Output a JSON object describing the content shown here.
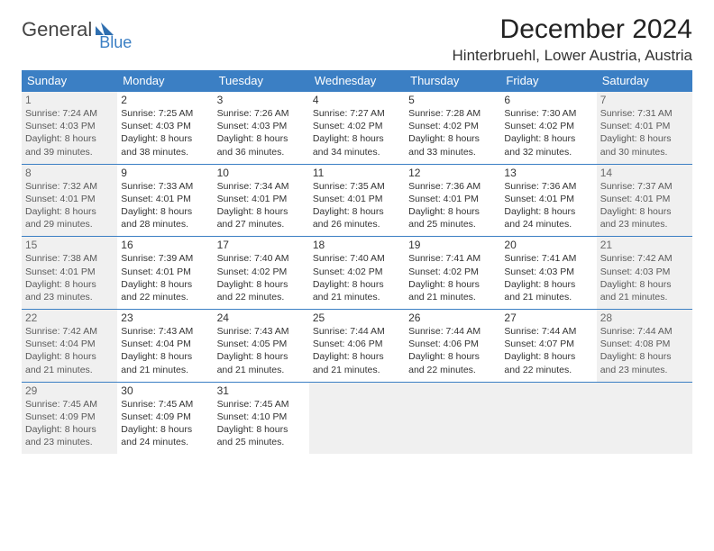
{
  "logo": {
    "text1": "General",
    "text2": "Blue"
  },
  "title": "December 2024",
  "location": "Hinterbruehl, Lower Austria, Austria",
  "colors": {
    "header_bg": "#3b7fc4",
    "header_fg": "#ffffff",
    "rule": "#3b7fc4",
    "shaded_bg": "#f0f0f0",
    "page_bg": "#ffffff",
    "text": "#333333"
  },
  "day_names": [
    "Sunday",
    "Monday",
    "Tuesday",
    "Wednesday",
    "Thursday",
    "Friday",
    "Saturday"
  ],
  "weeks": [
    [
      {
        "n": "1",
        "shaded": true,
        "sr": "7:24 AM",
        "ss": "4:03 PM",
        "dl": "8 hours and 39 minutes."
      },
      {
        "n": "2",
        "sr": "7:25 AM",
        "ss": "4:03 PM",
        "dl": "8 hours and 38 minutes."
      },
      {
        "n": "3",
        "sr": "7:26 AM",
        "ss": "4:03 PM",
        "dl": "8 hours and 36 minutes."
      },
      {
        "n": "4",
        "sr": "7:27 AM",
        "ss": "4:02 PM",
        "dl": "8 hours and 34 minutes."
      },
      {
        "n": "5",
        "sr": "7:28 AM",
        "ss": "4:02 PM",
        "dl": "8 hours and 33 minutes."
      },
      {
        "n": "6",
        "sr": "7:30 AM",
        "ss": "4:02 PM",
        "dl": "8 hours and 32 minutes."
      },
      {
        "n": "7",
        "shaded": true,
        "sr": "7:31 AM",
        "ss": "4:01 PM",
        "dl": "8 hours and 30 minutes."
      }
    ],
    [
      {
        "n": "8",
        "shaded": true,
        "sr": "7:32 AM",
        "ss": "4:01 PM",
        "dl": "8 hours and 29 minutes."
      },
      {
        "n": "9",
        "sr": "7:33 AM",
        "ss": "4:01 PM",
        "dl": "8 hours and 28 minutes."
      },
      {
        "n": "10",
        "sr": "7:34 AM",
        "ss": "4:01 PM",
        "dl": "8 hours and 27 minutes."
      },
      {
        "n": "11",
        "sr": "7:35 AM",
        "ss": "4:01 PM",
        "dl": "8 hours and 26 minutes."
      },
      {
        "n": "12",
        "sr": "7:36 AM",
        "ss": "4:01 PM",
        "dl": "8 hours and 25 minutes."
      },
      {
        "n": "13",
        "sr": "7:36 AM",
        "ss": "4:01 PM",
        "dl": "8 hours and 24 minutes."
      },
      {
        "n": "14",
        "shaded": true,
        "sr": "7:37 AM",
        "ss": "4:01 PM",
        "dl": "8 hours and 23 minutes."
      }
    ],
    [
      {
        "n": "15",
        "shaded": true,
        "sr": "7:38 AM",
        "ss": "4:01 PM",
        "dl": "8 hours and 23 minutes."
      },
      {
        "n": "16",
        "sr": "7:39 AM",
        "ss": "4:01 PM",
        "dl": "8 hours and 22 minutes."
      },
      {
        "n": "17",
        "sr": "7:40 AM",
        "ss": "4:02 PM",
        "dl": "8 hours and 22 minutes."
      },
      {
        "n": "18",
        "sr": "7:40 AM",
        "ss": "4:02 PM",
        "dl": "8 hours and 21 minutes."
      },
      {
        "n": "19",
        "sr": "7:41 AM",
        "ss": "4:02 PM",
        "dl": "8 hours and 21 minutes."
      },
      {
        "n": "20",
        "sr": "7:41 AM",
        "ss": "4:03 PM",
        "dl": "8 hours and 21 minutes."
      },
      {
        "n": "21",
        "shaded": true,
        "sr": "7:42 AM",
        "ss": "4:03 PM",
        "dl": "8 hours and 21 minutes."
      }
    ],
    [
      {
        "n": "22",
        "shaded": true,
        "sr": "7:42 AM",
        "ss": "4:04 PM",
        "dl": "8 hours and 21 minutes."
      },
      {
        "n": "23",
        "sr": "7:43 AM",
        "ss": "4:04 PM",
        "dl": "8 hours and 21 minutes."
      },
      {
        "n": "24",
        "sr": "7:43 AM",
        "ss": "4:05 PM",
        "dl": "8 hours and 21 minutes."
      },
      {
        "n": "25",
        "sr": "7:44 AM",
        "ss": "4:06 PM",
        "dl": "8 hours and 21 minutes."
      },
      {
        "n": "26",
        "sr": "7:44 AM",
        "ss": "4:06 PM",
        "dl": "8 hours and 22 minutes."
      },
      {
        "n": "27",
        "sr": "7:44 AM",
        "ss": "4:07 PM",
        "dl": "8 hours and 22 minutes."
      },
      {
        "n": "28",
        "shaded": true,
        "sr": "7:44 AM",
        "ss": "4:08 PM",
        "dl": "8 hours and 23 minutes."
      }
    ],
    [
      {
        "n": "29",
        "shaded": true,
        "sr": "7:45 AM",
        "ss": "4:09 PM",
        "dl": "8 hours and 23 minutes."
      },
      {
        "n": "30",
        "sr": "7:45 AM",
        "ss": "4:09 PM",
        "dl": "8 hours and 24 minutes."
      },
      {
        "n": "31",
        "sr": "7:45 AM",
        "ss": "4:10 PM",
        "dl": "8 hours and 25 minutes."
      },
      {
        "empty": true
      },
      {
        "empty": true
      },
      {
        "empty": true
      },
      {
        "empty": true
      }
    ]
  ],
  "labels": {
    "sunrise": "Sunrise: ",
    "sunset": "Sunset: ",
    "daylight": "Daylight: "
  }
}
